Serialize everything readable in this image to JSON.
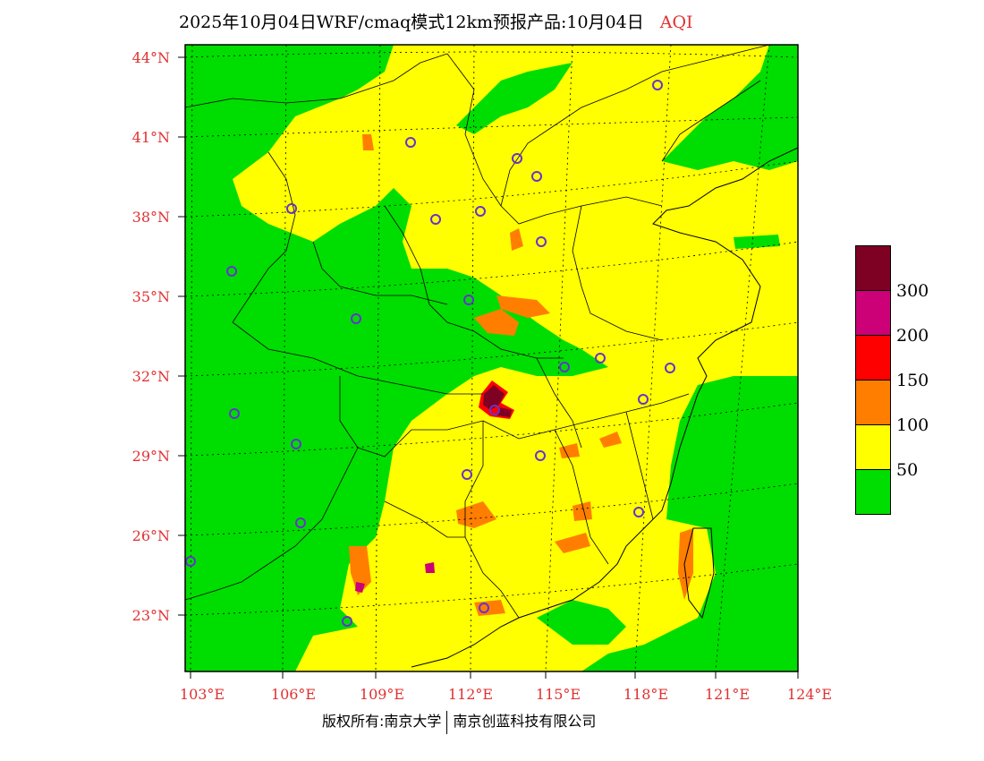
{
  "title": {
    "text": "2025年10月04日WRF/cmaq模式12km预报产品:10月04日",
    "tag": "AQI"
  },
  "map": {
    "lat_labels": [
      "44°N",
      "41°N",
      "38°N",
      "35°N",
      "32°N",
      "29°N",
      "26°N",
      "23°N"
    ],
    "lon_labels": [
      "103°E",
      "106°E",
      "109°E",
      "112°E",
      "115°E",
      "118°E",
      "121°E",
      "124°E"
    ],
    "colors": {
      "good": "#00dd00",
      "moderate": "#ffff00",
      "unhealthy_sensitive": "#ff7e00",
      "unhealthy": "#ff0000",
      "very_unhealthy": "#cc0077",
      "hazardous": "#7e0023",
      "station_marker": "#6633cc",
      "boundary": "#000000"
    }
  },
  "legend": {
    "labels": [
      "300",
      "200",
      "150",
      "100",
      "50"
    ],
    "colors": [
      "#7e0023",
      "#cc0077",
      "#ff0000",
      "#ff7e00",
      "#ffff00",
      "#00dd00"
    ]
  },
  "footer": {
    "left": "版权所有:南京大学",
    "right": "南京创蓝科技有限公司"
  }
}
